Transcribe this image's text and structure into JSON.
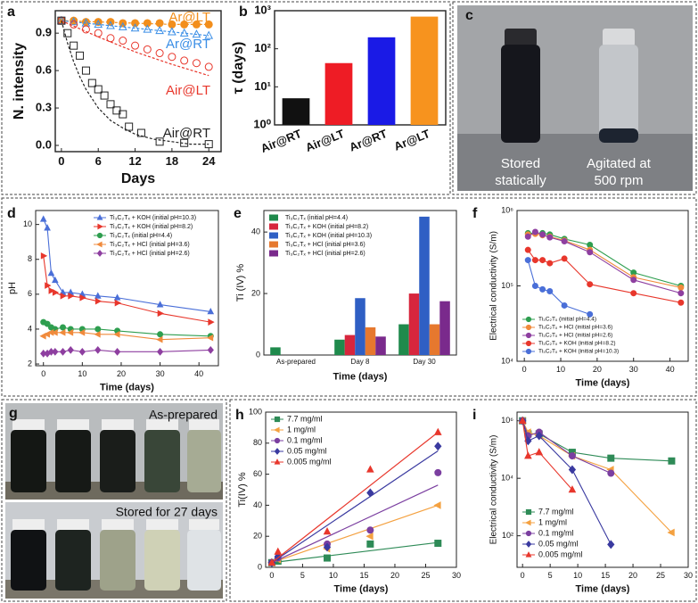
{
  "chart_data": [
    {
      "panel": "a",
      "type": "scatter",
      "x_label": "Days",
      "y_label": "N. intensity",
      "xlim": [
        -1,
        26
      ],
      "xticks": [
        0,
        6,
        12,
        18,
        24
      ],
      "ylim": [
        -0.05,
        1.08
      ],
      "yticks": [
        {
          "value": 0,
          "label": "0.0"
        },
        0.3,
        0.6,
        0.9
      ],
      "legend": "inline",
      "fit_dash": true,
      "series": [
        {
          "name": "Ar@LT",
          "color": "#f28e1c",
          "marker": "circle",
          "open": false,
          "x": [
            0,
            2,
            4,
            6,
            8,
            10,
            12,
            14,
            16,
            18,
            20,
            22,
            24
          ],
          "values": [
            1.0,
            1.0,
            0.99,
            0.99,
            0.99,
            0.98,
            0.98,
            0.98,
            0.98,
            0.97,
            0.97,
            0.97,
            0.97
          ],
          "fit": {
            "x": [
              0,
              6,
              12,
              18,
              24
            ],
            "values": [
              1.0,
              0.99,
              0.98,
              0.97,
              0.97
            ]
          }
        },
        {
          "name": "Ar@RT",
          "color": "#3a8ee6",
          "marker": "triangle",
          "open": true,
          "x": [
            0,
            2,
            4,
            6,
            8,
            10,
            12,
            14,
            16,
            18,
            20,
            22,
            24
          ],
          "values": [
            1.0,
            0.99,
            0.98,
            0.97,
            0.96,
            0.95,
            0.94,
            0.93,
            0.92,
            0.91,
            0.9,
            0.89,
            0.88
          ],
          "fit": {
            "x": [
              0,
              6,
              12,
              18,
              24
            ],
            "values": [
              1.0,
              0.97,
              0.94,
              0.91,
              0.88
            ]
          }
        },
        {
          "name": "Air@LT",
          "color": "#e8372c",
          "marker": "circle",
          "open": true,
          "x": [
            0,
            2,
            4,
            6,
            8,
            10,
            12,
            14,
            16,
            18,
            20,
            22,
            24
          ],
          "values": [
            1.0,
            0.97,
            0.93,
            0.9,
            0.86,
            0.84,
            0.8,
            0.77,
            0.74,
            0.71,
            0.68,
            0.66,
            0.63
          ],
          "fit": {
            "x": [
              0,
              6,
              12,
              18,
              24
            ],
            "values": [
              1.0,
              0.87,
              0.75,
              0.65,
              0.56
            ]
          }
        },
        {
          "name": "Air@RT",
          "color": "#222222",
          "marker": "square",
          "open": true,
          "x": [
            0,
            1,
            2,
            3,
            4,
            5,
            6,
            7,
            8,
            9,
            10,
            11,
            13,
            16,
            20,
            24
          ],
          "values": [
            1.0,
            0.9,
            0.8,
            0.72,
            0.6,
            0.5,
            0.45,
            0.4,
            0.33,
            0.28,
            0.25,
            0.15,
            0.1,
            0.03,
            0.02,
            0.01
          ],
          "fit": {
            "x": [
              0,
              1,
              2,
              3,
              4,
              6,
              8,
              10,
              12,
              15,
              18,
              21,
              24
            ],
            "values": [
              1.0,
              0.82,
              0.67,
              0.55,
              0.45,
              0.3,
              0.2,
              0.14,
              0.09,
              0.05,
              0.03,
              0.01,
              0.01
            ]
          }
        }
      ]
    },
    {
      "panel": "b",
      "type": "bar",
      "y_label": "τ (days)",
      "categories": [
        "Air@RT",
        "Air@LT",
        "Ar@RT",
        "Ar@LT"
      ],
      "values": [
        5,
        42,
        200,
        700
      ],
      "colors": [
        "#111111",
        "#ee1c25",
        "#1a1ae6",
        "#f7931e"
      ],
      "log_y": true,
      "ylim": [
        1,
        1000
      ],
      "yticks": [
        {
          "value": 1,
          "label": "10⁰"
        },
        {
          "value": 10,
          "label": "10¹"
        },
        {
          "value": 100,
          "label": "10²"
        },
        {
          "value": 1000,
          "label": "10³"
        }
      ]
    },
    {
      "panel": "d",
      "type": "line",
      "x_label": "Time (days)",
      "y_label": "pH",
      "xlim": [
        -2,
        45
      ],
      "xticks": [
        0,
        10,
        20,
        30,
        40
      ],
      "ylim": [
        1.9,
        10.8
      ],
      "yticks": [
        2,
        4,
        6,
        8,
        10
      ],
      "legend": "upper right",
      "x": [
        0,
        1,
        2,
        3,
        5,
        7,
        10,
        14,
        19,
        30,
        43
      ],
      "series": [
        {
          "name": "Ti₃C₂Tₓ + KOH (initial pH=10.3)",
          "color": "#4a6fd8",
          "marker": "triangle",
          "values": [
            10.3,
            9.8,
            7.2,
            6.8,
            6.1,
            6.1,
            6.0,
            5.9,
            5.8,
            5.4,
            5.0
          ]
        },
        {
          "name": "Ti₃C₂Tₓ + KOH (initial pH=8.2)",
          "color": "#e8372c",
          "marker": "triangle-right",
          "values": [
            8.2,
            6.5,
            6.2,
            6.1,
            5.9,
            5.9,
            5.8,
            5.6,
            5.5,
            4.9,
            4.4
          ]
        },
        {
          "name": "Ti₃C₂Tₓ (initial pH=4.4)",
          "color": "#2e9e4f",
          "marker": "circle",
          "values": [
            4.4,
            4.3,
            4.1,
            4.0,
            4.1,
            4.0,
            4.0,
            4.0,
            3.9,
            3.7,
            3.6
          ]
        },
        {
          "name": "Ti₃C₂Tₓ + HCl (initial pH=3.6)",
          "color": "#f08a3c",
          "marker": "triangle-left",
          "values": [
            3.6,
            3.7,
            3.8,
            3.8,
            3.8,
            3.8,
            3.8,
            3.7,
            3.7,
            3.4,
            3.5
          ]
        },
        {
          "name": "Ti₃C₂Tₓ + HCl (initial pH=2.6)",
          "color": "#8e3fa0",
          "marker": "diamond",
          "values": [
            2.6,
            2.6,
            2.7,
            2.7,
            2.7,
            2.8,
            2.7,
            2.8,
            2.7,
            2.7,
            2.8
          ]
        }
      ]
    },
    {
      "panel": "e",
      "type": "grouped-bar",
      "x_label": "Time (days)",
      "y_label": "Ti (IV) %",
      "categories": [
        "As-prepared",
        "Day 8",
        "Day 30"
      ],
      "ylim": [
        0,
        47
      ],
      "yticks": [
        0,
        20,
        40
      ],
      "legend": "upper left",
      "series": [
        {
          "name": "Ti₃C₂Tₓ (initial pH=4.4)",
          "color": "#1f8a4c",
          "values": [
            2.5,
            5,
            10
          ]
        },
        {
          "name": "Ti₃C₂Tₓ + KOH (initial pH=8.2)",
          "color": "#d7263d",
          "values": [
            null,
            6.5,
            20
          ]
        },
        {
          "name": "Ti₃C₂Tₓ + KOH (initial pH=10.3)",
          "color": "#2f5fc4",
          "values": [
            null,
            18.5,
            45
          ]
        },
        {
          "name": "Ti₃C₂Tₓ + HCl (initial pH=3.6)",
          "color": "#e6782e",
          "values": [
            null,
            9,
            10
          ]
        },
        {
          "name": "Ti₃C₂Tₓ + HCl (initial pH=2.6)",
          "color": "#7a2a8c",
          "values": [
            null,
            6,
            17.5
          ]
        }
      ]
    },
    {
      "panel": "f",
      "type": "line",
      "x_label": "Time (days)",
      "y_label": "Electrical conductivity (S/m)",
      "xlim": [
        -2,
        45
      ],
      "xticks": [
        0,
        10,
        20,
        30,
        40
      ],
      "log_y": true,
      "ylim": [
        10000,
        1000000
      ],
      "yticks": [
        {
          "value": 10000,
          "label": "10⁴"
        },
        {
          "value": 100000,
          "label": "10⁵"
        },
        {
          "value": 1000000,
          "label": "10⁶"
        }
      ],
      "legend": "lower left",
      "x": [
        1,
        3,
        5,
        7,
        11,
        18,
        30,
        43
      ],
      "series": [
        {
          "name": "Ti₃C₂Tₓ (initial pH=4.4)",
          "color": "#2e9e4f",
          "marker": "circle",
          "values": [
            500000,
            500000,
            500000,
            480000,
            420000,
            350000,
            150000,
            100000
          ]
        },
        {
          "name": "Ti₃C₂Tₓ + HCl (initial pH=3.6)",
          "color": "#f08a3c",
          "marker": "circle",
          "values": [
            480000,
            490000,
            470000,
            450000,
            400000,
            300000,
            130000,
            95000
          ]
        },
        {
          "name": "Ti₃C₂Tₓ + HCl (initial pH=2.6)",
          "color": "#8e3fa0",
          "marker": "circle",
          "values": [
            450000,
            520000,
            480000,
            440000,
            390000,
            280000,
            120000,
            80000
          ]
        },
        {
          "name": "Ti₃C₂Tₓ + KOH (initial pH=8.2)",
          "color": "#e8372c",
          "marker": "circle",
          "values": [
            300000,
            220000,
            220000,
            200000,
            230000,
            105000,
            80000,
            60000
          ]
        },
        {
          "name": "Ti₃C₂Tₓ + KOH (initial pH=10.3)",
          "color": "#4a6fd8",
          "marker": "circle",
          "values": [
            220000,
            100000,
            90000,
            85000,
            55000,
            42000,
            null,
            null
          ]
        }
      ]
    },
    {
      "panel": "h",
      "type": "scatter",
      "x_label": "Time (days)",
      "y_label": "Ti(IV) %",
      "xlim": [
        -1,
        30
      ],
      "xticks": [
        0,
        5,
        10,
        15,
        20,
        25,
        30
      ],
      "ylim": [
        0,
        100
      ],
      "yticks": [
        0,
        20,
        40,
        60,
        80,
        100
      ],
      "legend": "upper left",
      "fit_dash": false,
      "series": [
        {
          "name": "7.7 mg/ml",
          "color": "#2e8b57",
          "marker": "square",
          "x": [
            0,
            1,
            9,
            16,
            27
          ],
          "values": [
            3,
            4,
            6,
            15,
            15.5
          ],
          "fit": {
            "x": [
              0,
              27
            ],
            "values": [
              3,
              16
            ]
          }
        },
        {
          "name": "1 mg/ml",
          "color": "#f4a140",
          "marker": "triangle-left",
          "x": [
            0,
            1,
            9,
            16,
            27
          ],
          "values": [
            3,
            5,
            12,
            20,
            40
          ],
          "fit": {
            "x": [
              0,
              27
            ],
            "values": [
              3,
              40
            ]
          }
        },
        {
          "name": "0.1 mg/ml",
          "color": "#7b3fa0",
          "marker": "circle",
          "x": [
            0,
            1,
            9,
            16,
            27
          ],
          "values": [
            3,
            6,
            15,
            24,
            61
          ],
          "fit": {
            "x": [
              0,
              27
            ],
            "values": [
              3,
              53
            ]
          }
        },
        {
          "name": "0.05 mg/ml",
          "color": "#3a3aa0",
          "marker": "diamond",
          "x": [
            0,
            1,
            9,
            16,
            27
          ],
          "values": [
            3,
            7,
            13,
            48,
            78
          ],
          "fit": {
            "x": [
              0,
              27
            ],
            "values": [
              3,
              75
            ]
          }
        },
        {
          "name": "0.005 mg/ml",
          "color": "#e8372c",
          "marker": "triangle",
          "x": [
            0,
            1,
            9,
            16,
            27
          ],
          "values": [
            3,
            10,
            23,
            63,
            87
          ],
          "fit": {
            "x": [
              0,
              27
            ],
            "values": [
              3,
              87
            ]
          }
        }
      ]
    },
    {
      "panel": "i",
      "type": "line",
      "x_label": "Time (days)",
      "y_label": "Electrical conductivity (S/m)",
      "xlim": [
        -1,
        30
      ],
      "xticks": [
        0,
        5,
        10,
        15,
        20,
        25,
        30
      ],
      "log_y": true,
      "ylim": [
        8,
        2000000
      ],
      "yticks": [
        {
          "value": 100,
          "label": "10²"
        },
        {
          "value": 10000,
          "label": "10⁴"
        },
        {
          "value": 1000000,
          "label": "10⁶"
        }
      ],
      "legend": "lower left",
      "x": [
        0,
        1,
        3,
        9,
        16,
        27
      ],
      "series": [
        {
          "name": "7.7 mg/ml",
          "color": "#2e8b57",
          "marker": "square",
          "values": [
            1000000,
            350000,
            350000,
            80000,
            50000,
            40000
          ]
        },
        {
          "name": "1 mg/ml",
          "color": "#f4a140",
          "marker": "triangle-left",
          "values": [
            1000000,
            400000,
            300000,
            60000,
            20000,
            130
          ]
        },
        {
          "name": "0.1 mg/ml",
          "color": "#7b3fa0",
          "marker": "circle",
          "values": [
            1000000,
            300000,
            400000,
            60000,
            15000,
            null
          ]
        },
        {
          "name": "0.05 mg/ml",
          "color": "#3a3aa0",
          "marker": "diamond",
          "values": [
            1000000,
            200000,
            300000,
            20000,
            50,
            null
          ]
        },
        {
          "name": "0.005 mg/ml",
          "color": "#e8372c",
          "marker": "triangle",
          "values": [
            1000000,
            60000,
            80000,
            4000,
            null,
            null
          ]
        }
      ]
    }
  ],
  "photos": {
    "c": {
      "panel": "c",
      "captions": [
        [
          "Stored",
          "statically"
        ],
        [
          "Agitated at",
          "500 rpm"
        ]
      ]
    },
    "g": {
      "panel": "g",
      "labels": [
        "As-prepared",
        "Stored for 27 days"
      ]
    }
  }
}
